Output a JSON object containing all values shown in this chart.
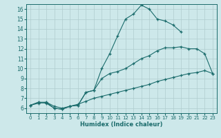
{
  "xlabel": "Humidex (Indice chaleur)",
  "xlim": [
    -0.5,
    23.5
  ],
  "ylim": [
    5.5,
    16.5
  ],
  "xticks": [
    0,
    1,
    2,
    3,
    4,
    5,
    6,
    7,
    8,
    9,
    10,
    11,
    12,
    13,
    14,
    15,
    16,
    17,
    18,
    19,
    20,
    21,
    22,
    23
  ],
  "yticks": [
    6,
    7,
    8,
    9,
    10,
    11,
    12,
    13,
    14,
    15,
    16
  ],
  "background_color": "#cde8ea",
  "grid_color": "#b0ccce",
  "line_color": "#1a6b6b",
  "line1_x": [
    0,
    1,
    2,
    3,
    4,
    5,
    6,
    7,
    8,
    9,
    10,
    11,
    12,
    13,
    14,
    15,
    16,
    17,
    18,
    19
  ],
  "line1_y": [
    6.3,
    6.6,
    6.6,
    6.0,
    5.9,
    6.2,
    6.3,
    7.6,
    7.8,
    10.0,
    11.5,
    13.3,
    15.0,
    15.5,
    16.4,
    16.0,
    15.0,
    14.8,
    14.4,
    13.7
  ],
  "line2_x": [
    0,
    1,
    2,
    3,
    4,
    5,
    6,
    7,
    8,
    9,
    10,
    11,
    12,
    13,
    14,
    15,
    16,
    17,
    18,
    19,
    20,
    21,
    22,
    23
  ],
  "line2_y": [
    6.3,
    6.6,
    6.5,
    6.0,
    5.9,
    6.2,
    6.3,
    7.6,
    7.8,
    9.0,
    9.5,
    9.7,
    10.0,
    10.5,
    11.0,
    11.3,
    11.8,
    12.1,
    12.1,
    12.2,
    12.0,
    12.0,
    11.5,
    9.5
  ],
  "line3_x": [
    0,
    1,
    2,
    3,
    4,
    5,
    6,
    7,
    8,
    9,
    10,
    11,
    12,
    13,
    14,
    15,
    16,
    17,
    18,
    19,
    20,
    21,
    22,
    23
  ],
  "line3_y": [
    6.3,
    6.5,
    6.6,
    6.2,
    6.0,
    6.2,
    6.4,
    6.7,
    7.0,
    7.2,
    7.4,
    7.6,
    7.8,
    8.0,
    8.2,
    8.4,
    8.7,
    8.9,
    9.1,
    9.3,
    9.5,
    9.6,
    9.8,
    9.5
  ]
}
